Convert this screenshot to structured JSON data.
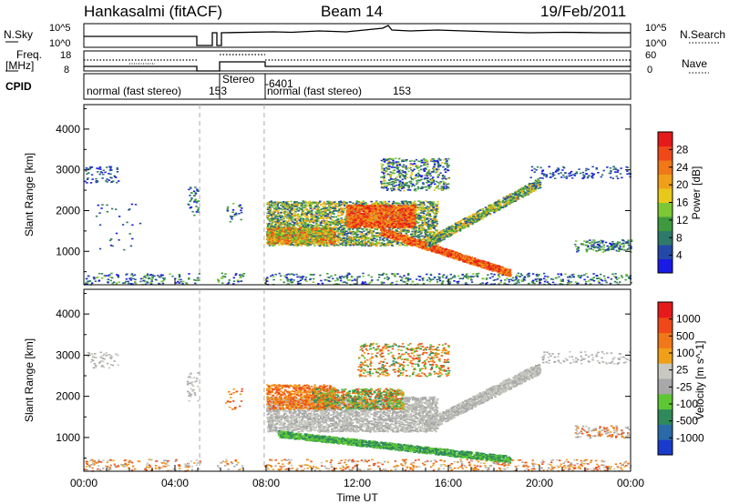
{
  "header": {
    "station": "Hankasalmi (fitACF)",
    "beam": "Beam 14",
    "date": "19/Feb/2011"
  },
  "strip_panels": {
    "nsky_label": "N.Sky",
    "nsearch_label": "N.Search",
    "nsky_ticks": [
      "10^5",
      "10^0"
    ],
    "nsearch_ticks": [
      "10^5",
      "10^0"
    ],
    "freq_label": "Freq.",
    "freq_unit": "[MHz]",
    "freq_ticks": [
      "18",
      "8"
    ],
    "nave_label": "Nave",
    "nave_ticks": [
      "60",
      "0"
    ],
    "cpid_label": "CPID",
    "cpid_segments": [
      "normal (fast stereo)",
      "153",
      "Stereo",
      "-6401",
      "normal (fast stereo)",
      "153"
    ]
  },
  "chart_data": [
    {
      "type": "heatmap",
      "title": "",
      "xlabel": "",
      "ylabel": "Slant Range [km]",
      "xlim": [
        "00:00",
        "24:00"
      ],
      "ylim": [
        180,
        4600
      ],
      "yticks": [
        "1000",
        "2000",
        "3000",
        "4000"
      ],
      "colorbar": {
        "label": "Power [dB]",
        "ticks": [
          "4",
          "8",
          "12",
          "16",
          "20",
          "24",
          "28"
        ],
        "colors": [
          "#1a1ae6",
          "#2348a8",
          "#2e7a6a",
          "#3e9a3e",
          "#7cc834",
          "#e8c81a",
          "#f0a018",
          "#f07818",
          "#f04818",
          "#e61a1a"
        ]
      },
      "data_gaps": [
        [
          "05:05",
          "05:50"
        ],
        [
          "07:00",
          "07:55"
        ]
      ],
      "features": [
        {
          "feature": "ground scatter band",
          "time": [
            "08:00",
            "18:40"
          ],
          "range_km": [
            1500,
            450
          ],
          "power_db": 22
        },
        {
          "feature": "main echo region",
          "time": [
            "08:00",
            "15:30"
          ],
          "range_km": [
            1200,
            2200
          ],
          "power_db": 14
        },
        {
          "feature": "high power core",
          "time": [
            "11:30",
            "14:30"
          ],
          "range_km": [
            1600,
            2100
          ],
          "power_db": 26
        },
        {
          "feature": "upper echoes",
          "time": [
            "13:00",
            "16:00"
          ],
          "range_km": [
            2500,
            3200
          ],
          "power_db": 8
        }
      ]
    },
    {
      "type": "heatmap",
      "title": "",
      "xlabel": "Time UT",
      "ylabel": "Slant Range [km]",
      "xlim": [
        "00:00",
        "24:00"
      ],
      "ylim": [
        180,
        4600
      ],
      "xticks": [
        "00:00",
        "04:00",
        "08:00",
        "12:00",
        "16:00",
        "20:00",
        "00:00"
      ],
      "yticks": [
        "1000",
        "2000",
        "3000",
        "4000"
      ],
      "colorbar": {
        "label": "Velocity [m s^-1]",
        "ticks": [
          "1000",
          "500",
          "100",
          "25",
          "-25",
          "-100",
          "-500",
          "-1000"
        ],
        "colors": [
          "#1a3acc",
          "#2a6aa8",
          "#2e8a5a",
          "#5ec834",
          "#a8a8a8",
          "#c8c8c0",
          "#f0a018",
          "#f07818",
          "#f04818",
          "#e61a1a"
        ]
      },
      "data_gaps": [
        [
          "05:05",
          "05:50"
        ],
        [
          "07:00",
          "07:55"
        ]
      ],
      "features": [
        {
          "feature": "ground scatter band",
          "time": [
            "08:00",
            "18:40"
          ],
          "range_km": [
            1100,
            450
          ],
          "velocity_ms": 100
        },
        {
          "feature": "ground scatter",
          "time": [
            "08:00",
            "20:00"
          ],
          "range_km": [
            1200,
            2000
          ],
          "velocity_ms": 0
        },
        {
          "feature": "ionospheric scatter",
          "time": [
            "08:00",
            "14:00"
          ],
          "range_km": [
            1800,
            3200
          ],
          "velocity_ms": -150
        }
      ]
    }
  ]
}
